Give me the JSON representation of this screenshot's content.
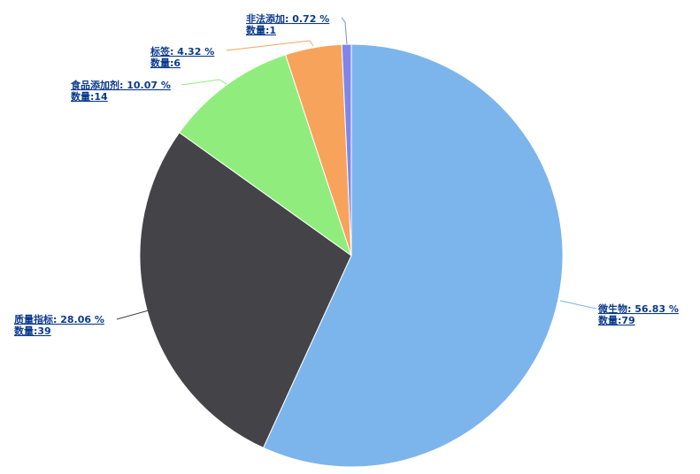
{
  "chart_data": {
    "type": "pie",
    "count_prefix": "数量:",
    "slices": [
      {
        "name": "微生物",
        "percent": 56.83,
        "count": 79,
        "label": "微生物: 56.83 %",
        "count_label": "数量:79",
        "color": "#7cb5ec"
      },
      {
        "name": "质量指标",
        "percent": 28.06,
        "count": 39,
        "label": "质量指标: 28.06 %",
        "count_label": "数量:39",
        "color": "#434348"
      },
      {
        "name": "食品添加剂",
        "percent": 10.07,
        "count": 14,
        "label": "食品添加剂: 10.07 %",
        "count_label": "数量:14",
        "color": "#90ed7d"
      },
      {
        "name": "标签",
        "percent": 4.32,
        "count": 6,
        "label": "标签: 4.32 %",
        "count_label": "数量:6",
        "color": "#f7a35c"
      },
      {
        "name": "非法添加",
        "percent": 0.72,
        "count": 1,
        "label": "非法添加: 0.72 %",
        "count_label": "数量:1",
        "color": "#8085e9"
      }
    ],
    "start_angle": "top",
    "direction": "clockwise",
    "legend": "none"
  }
}
